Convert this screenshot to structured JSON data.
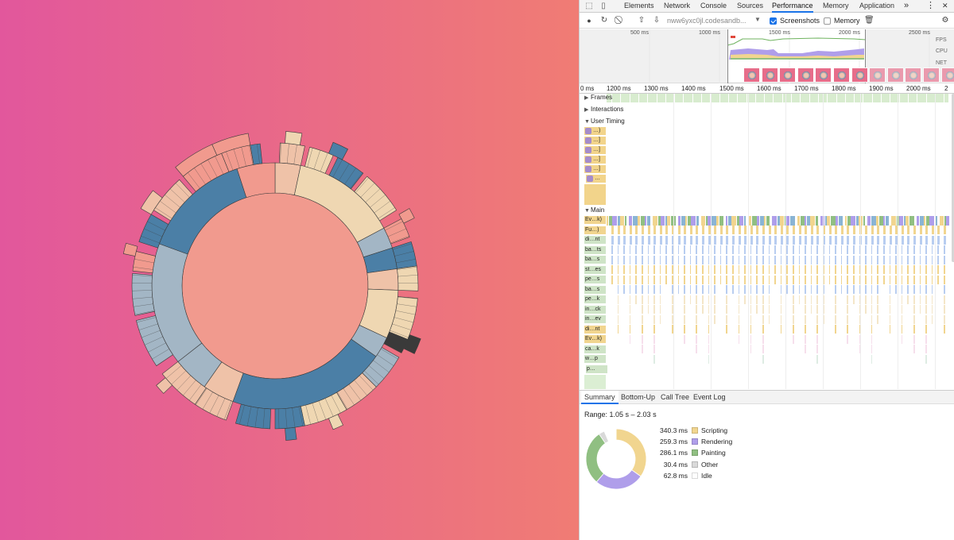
{
  "stage": {
    "gradient_from": "#e2579c",
    "gradient_to": "#f07c74",
    "sunburst_colors": {
      "salmon": "#f19a8e",
      "blue": "#4b7fa6",
      "wheat": "#efd7b2",
      "peach": "#efc2a8",
      "gray_blue": "#a3b6c5",
      "dark": "#3a3a3a"
    }
  },
  "devtools": {
    "tabs": [
      "Elements",
      "Network",
      "Console",
      "Sources",
      "Performance",
      "Memory",
      "Application"
    ],
    "active_tab": "Performance",
    "more_tabs": "»",
    "menu": "⋮",
    "close": "✕",
    "toolbar": {
      "url": "nww6yxc0jl.codesandb...",
      "screenshots_label": "Screenshots",
      "screenshots_checked": true,
      "memory_label": "Memory",
      "memory_checked": false
    },
    "overview": {
      "ticks": [
        "500 ms",
        "1000 ms",
        "1500 ms",
        "2000 ms",
        "2500 ms"
      ],
      "labels": [
        "FPS",
        "CPU",
        "NET"
      ]
    },
    "ruler": [
      "0 ms",
      "1200 ms",
      "1300 ms",
      "1400 ms",
      "1500 ms",
      "1600 ms",
      "1700 ms",
      "1800 ms",
      "1900 ms",
      "2000 ms",
      "2"
    ],
    "sections": {
      "frames": "Frames",
      "interactions": "Interactions",
      "user_timing": "User Timing",
      "main": "Main"
    },
    "user_timing_rows": [
      "…)",
      "…]",
      "…]",
      "…]",
      "…]",
      "…"
    ],
    "main_rows": [
      "Ev…k)",
      "Fu…)",
      "di…nt",
      "ba…ts",
      "ba…s",
      "st…es",
      "pe…s",
      "ba…s",
      "pe…k",
      "in…ck",
      "in…ev",
      "di…nt",
      "Ev…k)",
      "ca…k",
      "w…p",
      "p…"
    ],
    "bottom_tabs": [
      "Summary",
      "Bottom-Up",
      "Call Tree",
      "Event Log"
    ],
    "active_bottom_tab": "Summary",
    "summary": {
      "range": "Range: 1.05 s – 2.03 s",
      "items": [
        {
          "value": "340.3 ms",
          "name": "Scripting",
          "ms": 340.3,
          "color": "#f1d58f"
        },
        {
          "value": "259.3 ms",
          "name": "Rendering",
          "ms": 259.3,
          "color": "#af9eea"
        },
        {
          "value": "286.1 ms",
          "name": "Painting",
          "ms": 286.1,
          "color": "#90bf82"
        },
        {
          "value": "30.4 ms",
          "name": "Other",
          "ms": 30.4,
          "color": "#d9d9d9"
        },
        {
          "value": "62.8 ms",
          "name": "Idle",
          "ms": 62.8,
          "color": "#ffffff"
        }
      ]
    }
  }
}
